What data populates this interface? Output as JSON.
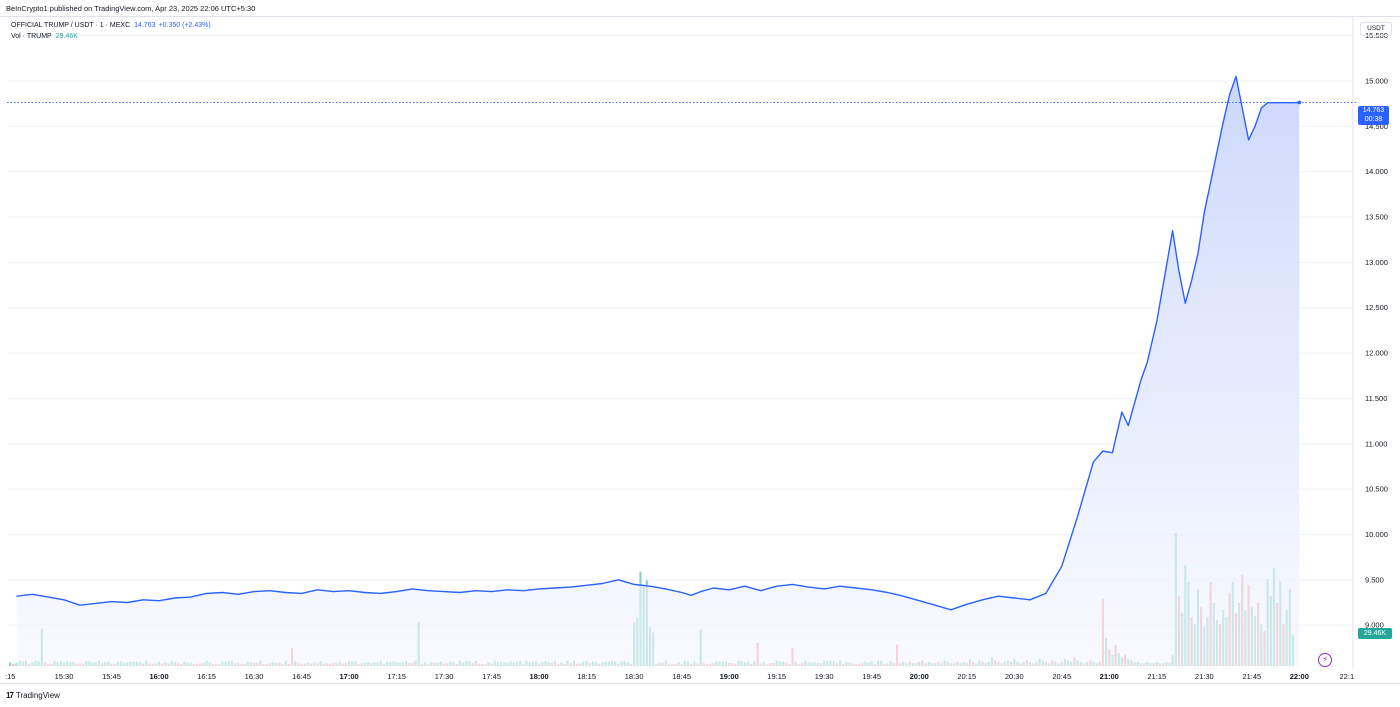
{
  "header": {
    "published": "BeInCrypto1 published on TradingView.com, Apr 23, 2025 22:06 UTC+5:30"
  },
  "legend": {
    "symbol": "OFFICIAL TRUMP / USDT · 1 · MEXC",
    "last": "14.763",
    "change": "+0.350 (+2.43%)",
    "volume_label": "Vol · TRUMP",
    "volume_value": "29.46K"
  },
  "axis_unit": "USDT",
  "price_badge": {
    "price": "14.763",
    "countdown": "00:38"
  },
  "volume_badge": "29.46K",
  "footer": {
    "logo_mark": "17",
    "logo_text": "TradingView"
  },
  "colors": {
    "line": "#2962ff",
    "fill_top": "#c9d5fb",
    "fill_bottom": "#f3f6fe",
    "vol_up": "#8fd3c7",
    "vol_down": "#f5a3a3",
    "grid": "#f0f3fa"
  },
  "icons": {
    "bolt": "lightning-bolt-icon"
  },
  "chart_data": {
    "type": "line",
    "title": "OFFICIAL TRUMP / USDT · 1 · MEXC",
    "ylabel": "USDT",
    "ylim": [
      8.55,
      15.65
    ],
    "y_ticks": [
      "15.500",
      "15.000",
      "14.500",
      "14.000",
      "13.500",
      "13.000",
      "12.500",
      "12.000",
      "11.500",
      "11.000",
      "10.500",
      "10.000",
      "9.500",
      "9.000"
    ],
    "x_ticks": [
      {
        "label": ":15",
        "major": false
      },
      {
        "label": "15:30",
        "major": false
      },
      {
        "label": "15:45",
        "major": false
      },
      {
        "label": "16:00",
        "major": true
      },
      {
        "label": "16:15",
        "major": false
      },
      {
        "label": "16:30",
        "major": false
      },
      {
        "label": "16:45",
        "major": false
      },
      {
        "label": "17:00",
        "major": true
      },
      {
        "label": "17:15",
        "major": false
      },
      {
        "label": "17:30",
        "major": false
      },
      {
        "label": "17:45",
        "major": false
      },
      {
        "label": "18:00",
        "major": true
      },
      {
        "label": "18:15",
        "major": false
      },
      {
        "label": "18:30",
        "major": false
      },
      {
        "label": "18:45",
        "major": false
      },
      {
        "label": "19:00",
        "major": true
      },
      {
        "label": "19:15",
        "major": false
      },
      {
        "label": "19:30",
        "major": false
      },
      {
        "label": "19:45",
        "major": false
      },
      {
        "label": "20:00",
        "major": true
      },
      {
        "label": "20:15",
        "major": false
      },
      {
        "label": "20:30",
        "major": false
      },
      {
        "label": "20:45",
        "major": false
      },
      {
        "label": "21:00",
        "major": true
      },
      {
        "label": "21:15",
        "major": false
      },
      {
        "label": "21:30",
        "major": false
      },
      {
        "label": "21:45",
        "major": false
      },
      {
        "label": "22:00",
        "major": true
      },
      {
        "label": "22:1",
        "major": false
      }
    ],
    "x_start_minutes": 915,
    "x_end_minutes": 1335,
    "series": [
      {
        "x_minutes": [
          915,
          920,
          925,
          930,
          935,
          940,
          945,
          950,
          955,
          960,
          965,
          970,
          975,
          980,
          985,
          990,
          995,
          1000,
          1005,
          1010,
          1015,
          1020,
          1025,
          1030,
          1035,
          1040,
          1045,
          1050,
          1055,
          1060,
          1065,
          1070,
          1075,
          1080,
          1085,
          1090,
          1095,
          1100,
          1105,
          1110,
          1115,
          1120,
          1125,
          1128,
          1131,
          1135,
          1140,
          1145,
          1150,
          1155,
          1160,
          1165,
          1170,
          1175,
          1180,
          1185,
          1190,
          1195,
          1200,
          1205,
          1210,
          1215,
          1220,
          1225,
          1230,
          1235,
          1240,
          1245,
          1250,
          1255,
          1258,
          1261,
          1264,
          1266,
          1268,
          1270,
          1272,
          1275,
          1278,
          1280,
          1282,
          1284,
          1286,
          1288,
          1290,
          1293,
          1296,
          1298,
          1300,
          1302,
          1304,
          1306,
          1308,
          1310,
          1312,
          1314,
          1316,
          1318,
          1320
        ],
        "values": [
          9.32,
          9.34,
          9.31,
          9.28,
          9.22,
          9.24,
          9.26,
          9.25,
          9.28,
          9.27,
          9.3,
          9.31,
          9.35,
          9.36,
          9.34,
          9.37,
          9.38,
          9.36,
          9.35,
          9.39,
          9.37,
          9.38,
          9.36,
          9.35,
          9.37,
          9.4,
          9.38,
          9.37,
          9.36,
          9.38,
          9.37,
          9.39,
          9.38,
          9.4,
          9.41,
          9.42,
          9.44,
          9.46,
          9.5,
          9.45,
          9.43,
          9.4,
          9.36,
          9.33,
          9.37,
          9.41,
          9.39,
          9.43,
          9.38,
          9.43,
          9.45,
          9.42,
          9.4,
          9.43,
          9.41,
          9.39,
          9.36,
          9.32,
          9.27,
          9.22,
          9.17,
          9.23,
          9.28,
          9.32,
          9.3,
          9.28,
          9.35,
          9.65,
          10.2,
          10.8,
          10.92,
          10.9,
          11.35,
          11.2,
          11.45,
          11.7,
          11.9,
          12.35,
          12.95,
          13.35,
          12.9,
          12.55,
          12.8,
          13.1,
          13.55,
          14.05,
          14.55,
          14.85,
          15.05,
          14.7,
          14.35,
          14.5,
          14.7,
          14.76,
          14.76,
          14.76,
          14.76,
          14.76,
          14.763
        ]
      }
    ],
    "volume": {
      "name": "Vol · TRUMP",
      "last": "29.46K",
      "vmax": 100,
      "x_minutes": [
        1196,
        1197,
        1198,
        1199,
        1200,
        1201,
        1202,
        1203,
        1204,
        1205,
        1206,
        1207,
        1208,
        1209,
        1210,
        1211,
        1212,
        1213,
        1214,
        1215,
        1216,
        1217,
        1218,
        1219,
        1220,
        1221,
        1222,
        1223,
        1224,
        1225,
        1226,
        1227,
        1228,
        1229,
        1230,
        1231,
        1232,
        1233,
        1234,
        1235,
        1236,
        1237,
        1238,
        1239,
        1240,
        1241,
        1242,
        1243,
        1244,
        1245,
        1246,
        1247,
        1248,
        1249,
        1250,
        1251,
        1252,
        1253,
        1254,
        1255,
        1256,
        1257,
        1258,
        1259,
        1260,
        1261,
        1262,
        1263,
        1264,
        1265,
        1266,
        1267,
        1268,
        1269,
        1270,
        1271,
        1272,
        1273,
        1274,
        1275,
        1276,
        1277,
        1278,
        1279,
        1280,
        1281,
        1282,
        1283,
        1284,
        1285,
        1286,
        1287,
        1288,
        1289,
        1290,
        1291,
        1292,
        1293,
        1294,
        1295,
        1296,
        1297,
        1298,
        1299,
        1300,
        1301,
        1302,
        1303,
        1304,
        1305,
        1306,
        1307,
        1308,
        1309,
        1310,
        1311,
        1312,
        1313,
        1314,
        1315,
        1316,
        1317,
        1318
      ],
      "values": [
        2,
        3,
        2,
        2,
        3,
        4,
        2,
        3,
        2,
        2,
        3,
        2,
        4,
        3,
        2,
        2,
        3,
        2,
        3,
        2,
        5,
        3,
        2,
        4,
        3,
        2,
        3,
        6,
        4,
        3,
        2,
        3,
        4,
        3,
        5,
        3,
        2,
        3,
        4,
        3,
        2,
        3,
        5,
        4,
        3,
        2,
        4,
        3,
        2,
        3,
        5,
        4,
        3,
        6,
        4,
        3,
        2,
        3,
        4,
        3,
        2,
        3,
        48,
        20,
        12,
        8,
        15,
        9,
        6,
        8,
        5,
        4,
        3,
        3,
        2,
        2,
        3,
        2,
        2,
        3,
        2,
        2,
        3,
        2,
        8,
        95,
        50,
        38,
        72,
        60,
        35,
        30,
        55,
        42,
        28,
        35,
        60,
        45,
        33,
        30,
        40,
        35,
        52,
        60,
        38,
        45,
        65,
        40,
        58,
        42,
        36,
        45,
        30,
        25,
        62,
        50,
        70,
        45,
        60,
        30,
        40,
        55,
        22
      ],
      "up": [
        true,
        false,
        true,
        true,
        false,
        true,
        false,
        true,
        true,
        true,
        false,
        true,
        true,
        false,
        true,
        true,
        false,
        true,
        true,
        false,
        true,
        false,
        true,
        true,
        false,
        true,
        true,
        true,
        false,
        true,
        false,
        true,
        true,
        false,
        true,
        true,
        false,
        true,
        false,
        true,
        true,
        false,
        true,
        true,
        false,
        true,
        false,
        true,
        true,
        false,
        true,
        true,
        true,
        false,
        true,
        true,
        false,
        true,
        false,
        true,
        true,
        false,
        false,
        true,
        false,
        true,
        false,
        true,
        true,
        false,
        true,
        false,
        true,
        true,
        true,
        false,
        true,
        true,
        false,
        true,
        true,
        false,
        true,
        true,
        true,
        true,
        false,
        true,
        true,
        true,
        false,
        true,
        true,
        false,
        true,
        true,
        false,
        true,
        true,
        false,
        true,
        true,
        false,
        true,
        false,
        true,
        false,
        true,
        false,
        true,
        true,
        false,
        true,
        false,
        true,
        true,
        true,
        false,
        true,
        false,
        true,
        true,
        true
      ]
    }
  }
}
